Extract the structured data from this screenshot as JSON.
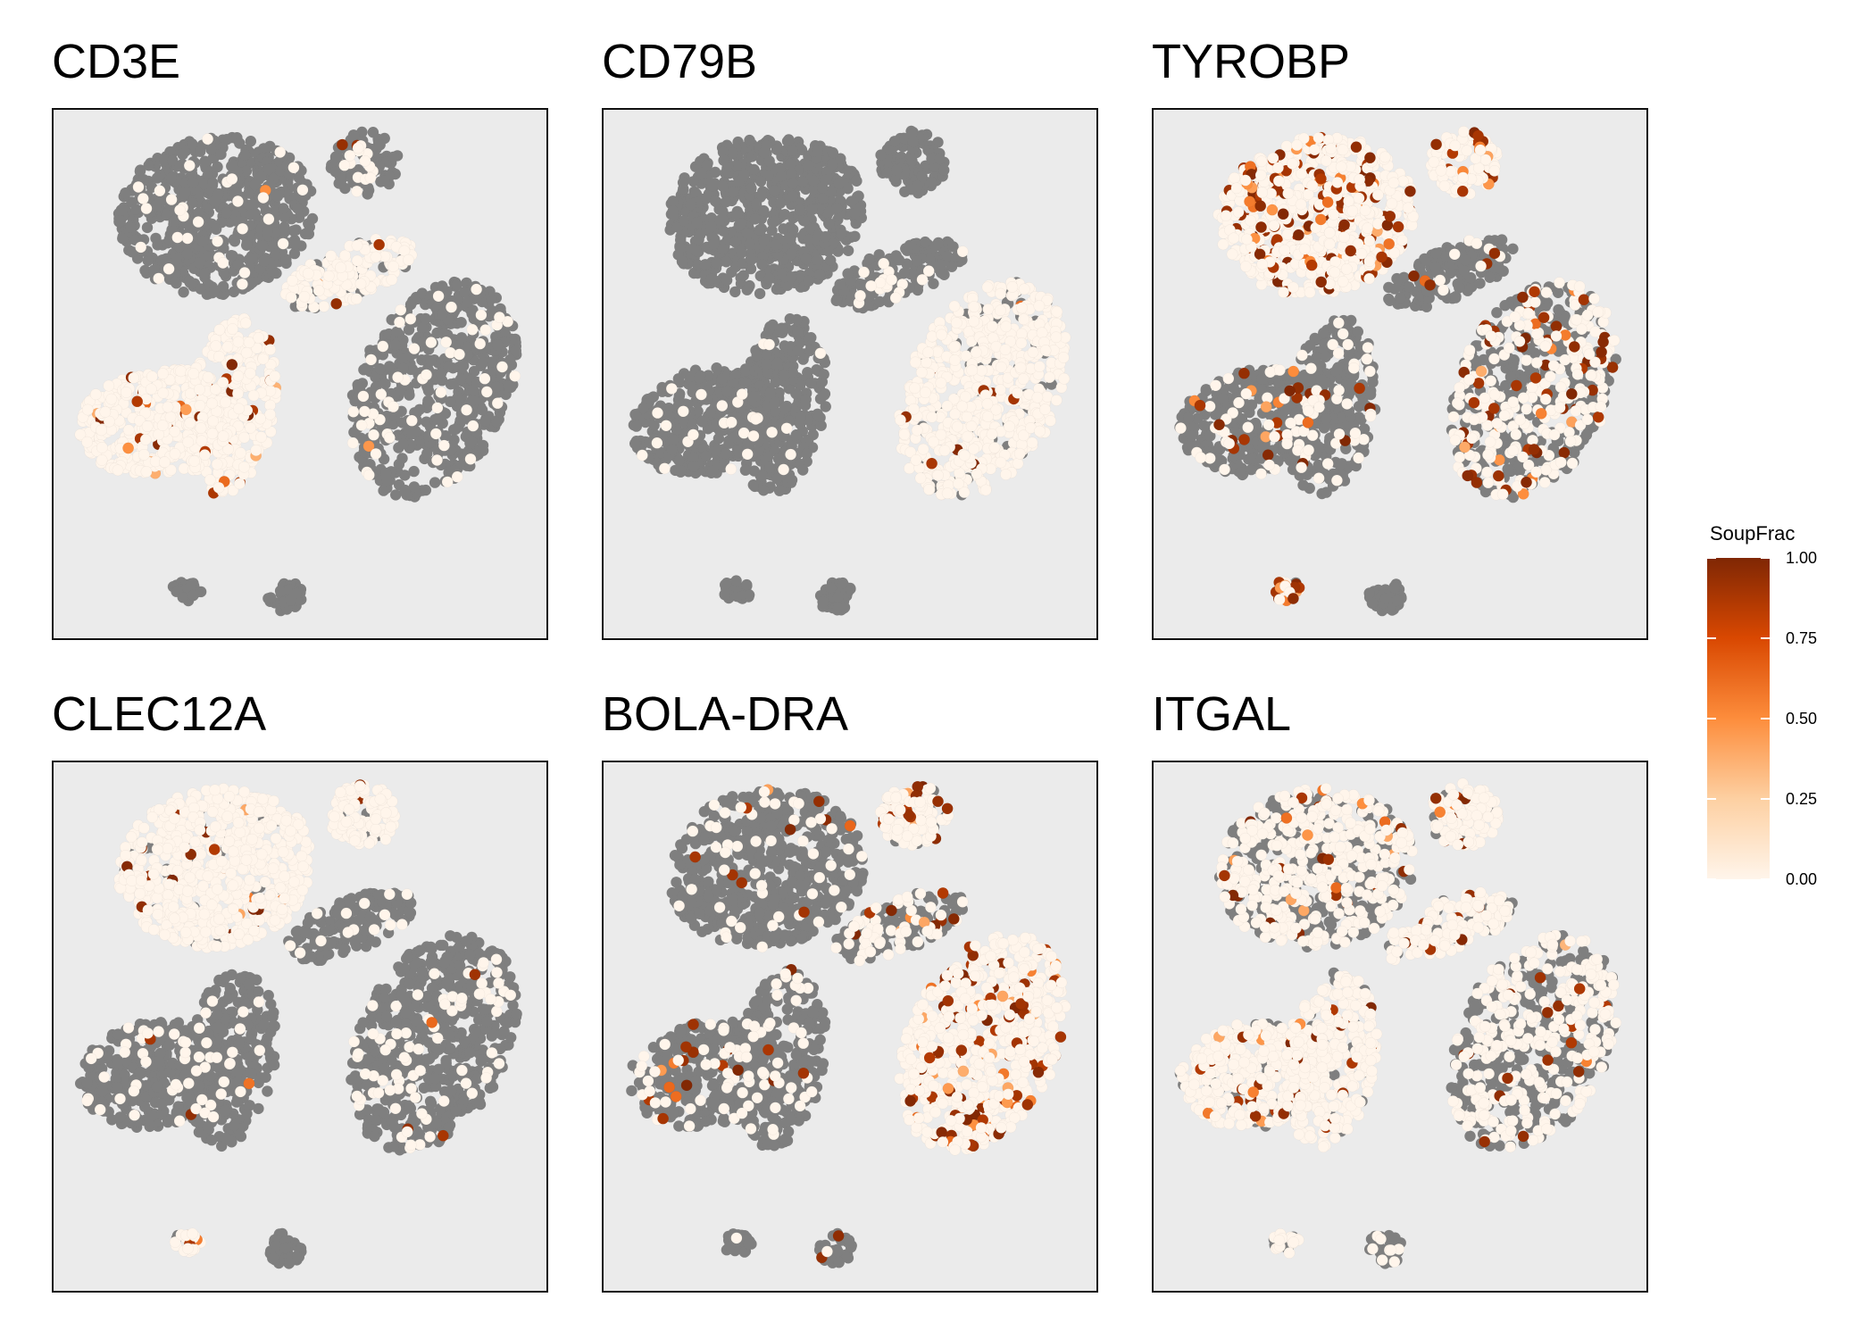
{
  "chart_data": {
    "type": "scatter",
    "panels": [
      {
        "title": "CD3E",
        "soupfrac": {
          "c1": 0.0,
          "c2": 0.0,
          "c3": 0.0,
          "c4": 0.0,
          "c5": 0.0,
          "c6": 0.0,
          "c7": 0.0,
          "c8": 0.0
        },
        "grey": {
          "c1": 0.95,
          "c2": 0.85,
          "c3": 0.0,
          "c4": 0.0,
          "c5": 0.15,
          "c6": 0.92,
          "c7": 1.0,
          "c8": 1.0
        },
        "high_fraction": 0.04
      },
      {
        "title": "CD79B",
        "soupfrac": {
          "c1": 0.0,
          "c2": 0.0,
          "c3": 0.0,
          "c4": 0.0,
          "c5": 0.0,
          "c6": 0.0,
          "c7": 0.0,
          "c8": 0.0
        },
        "grey": {
          "c1": 1.0,
          "c2": 1.0,
          "c3": 0.95,
          "c4": 0.95,
          "c5": 0.92,
          "c6": 0.1,
          "c7": 1.0,
          "c8": 1.0
        },
        "high_fraction": 0.01
      },
      {
        "title": "TYROBP",
        "soupfrac": {
          "c1": 0.0,
          "c2": 0.0,
          "c3": 0.0,
          "c4": 0.0,
          "c5": 0.0,
          "c6": 0.0,
          "c7": 0.0,
          "c8": 0.0
        },
        "grey": {
          "c1": 0.0,
          "c2": 0.0,
          "c3": 0.85,
          "c4": 0.85,
          "c5": 0.9,
          "c6": 0.55,
          "c7": 0.2,
          "c8": 1.0
        },
        "high_fraction": 0.16
      },
      {
        "title": "CLEC12A",
        "soupfrac": {
          "c1": 0.0,
          "c2": 0.0,
          "c3": 0.0,
          "c4": 0.0,
          "c5": 0.0,
          "c6": 0.0,
          "c7": 0.0,
          "c8": 0.0
        },
        "grey": {
          "c1": 0.05,
          "c2": 0.05,
          "c3": 0.9,
          "c4": 0.92,
          "c5": 0.92,
          "c6": 0.88,
          "c7": 0.2,
          "c8": 1.0
        },
        "high_fraction": 0.03
      },
      {
        "title": "BOLA-DRA",
        "soupfrac": {
          "c1": 0.0,
          "c2": 0.0,
          "c3": 0.0,
          "c4": 0.0,
          "c5": 0.0,
          "c6": 0.0,
          "c7": 0.0,
          "c8": 0.0
        },
        "grey": {
          "c1": 0.9,
          "c2": 0.05,
          "c3": 0.85,
          "c4": 0.85,
          "c5": 0.55,
          "c6": 0.0,
          "c7": 0.95,
          "c8": 0.95
        },
        "high_fraction": 0.13
      },
      {
        "title": "ITGAL",
        "soupfrac": {
          "c1": 0.0,
          "c2": 0.0,
          "c3": 0.0,
          "c4": 0.0,
          "c5": 0.0,
          "c6": 0.0,
          "c7": 0.0,
          "c8": 0.0
        },
        "grey": {
          "c1": 0.45,
          "c2": 0.05,
          "c3": 0.1,
          "c4": 0.1,
          "c5": 0.15,
          "c6": 0.55,
          "c7": 0.5,
          "c8": 0.8
        },
        "high_fraction": 0.05
      }
    ],
    "legend": {
      "title": "SoupFrac",
      "ticks": [
        "1.00",
        "0.75",
        "0.50",
        "0.25",
        "0.00"
      ],
      "range": [
        0,
        1
      ],
      "placement": "right"
    },
    "colors": {
      "panel_bg": "#ebebeb",
      "no_soup": "#7f7f7f",
      "low": "#fff5eb",
      "mid": "#fd8d3c",
      "high": "#7f2704"
    },
    "grid": false
  }
}
